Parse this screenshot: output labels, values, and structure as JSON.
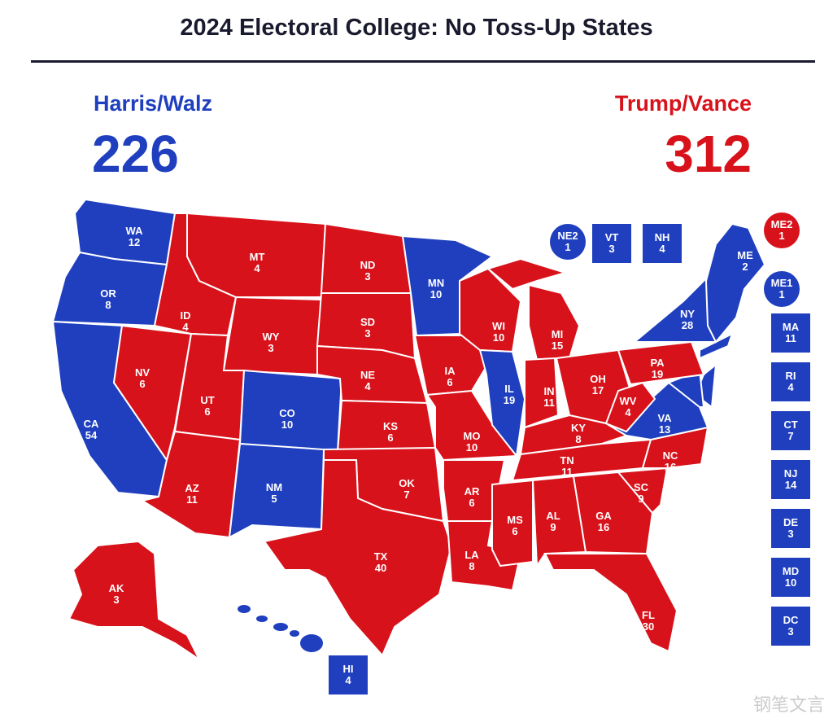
{
  "title": "2024 Electoral College: No Toss-Up States",
  "democrat": {
    "name": "Harris/Walz",
    "votes": "226",
    "color": "#1f3fbf"
  },
  "republican": {
    "name": "Trump/Vance",
    "votes": "312",
    "color": "#d8121b"
  },
  "states": [
    {
      "abbr": "WA",
      "votes": "12",
      "winner": "D"
    },
    {
      "abbr": "OR",
      "votes": "8",
      "winner": "D"
    },
    {
      "abbr": "CA",
      "votes": "54",
      "winner": "D"
    },
    {
      "abbr": "NV",
      "votes": "6",
      "winner": "R"
    },
    {
      "abbr": "ID",
      "votes": "4",
      "winner": "R"
    },
    {
      "abbr": "MT",
      "votes": "4",
      "winner": "R"
    },
    {
      "abbr": "WY",
      "votes": "3",
      "winner": "R"
    },
    {
      "abbr": "UT",
      "votes": "6",
      "winner": "R"
    },
    {
      "abbr": "AZ",
      "votes": "11",
      "winner": "R"
    },
    {
      "abbr": "CO",
      "votes": "10",
      "winner": "D"
    },
    {
      "abbr": "NM",
      "votes": "5",
      "winner": "D"
    },
    {
      "abbr": "ND",
      "votes": "3",
      "winner": "R"
    },
    {
      "abbr": "SD",
      "votes": "3",
      "winner": "R"
    },
    {
      "abbr": "NE",
      "votes": "4",
      "winner": "R"
    },
    {
      "abbr": "KS",
      "votes": "6",
      "winner": "R"
    },
    {
      "abbr": "OK",
      "votes": "7",
      "winner": "R"
    },
    {
      "abbr": "TX",
      "votes": "40",
      "winner": "R"
    },
    {
      "abbr": "MN",
      "votes": "10",
      "winner": "D"
    },
    {
      "abbr": "IA",
      "votes": "6",
      "winner": "R"
    },
    {
      "abbr": "MO",
      "votes": "10",
      "winner": "R"
    },
    {
      "abbr": "AR",
      "votes": "6",
      "winner": "R"
    },
    {
      "abbr": "LA",
      "votes": "8",
      "winner": "R"
    },
    {
      "abbr": "WI",
      "votes": "10",
      "winner": "R"
    },
    {
      "abbr": "IL",
      "votes": "19",
      "winner": "D"
    },
    {
      "abbr": "MI",
      "votes": "15",
      "winner": "R"
    },
    {
      "abbr": "IN",
      "votes": "11",
      "winner": "R"
    },
    {
      "abbr": "OH",
      "votes": "17",
      "winner": "R"
    },
    {
      "abbr": "KY",
      "votes": "8",
      "winner": "R"
    },
    {
      "abbr": "TN",
      "votes": "11",
      "winner": "R"
    },
    {
      "abbr": "MS",
      "votes": "6",
      "winner": "R"
    },
    {
      "abbr": "AL",
      "votes": "9",
      "winner": "R"
    },
    {
      "abbr": "GA",
      "votes": "16",
      "winner": "R"
    },
    {
      "abbr": "FL",
      "votes": "30",
      "winner": "R"
    },
    {
      "abbr": "SC",
      "votes": "9",
      "winner": "R"
    },
    {
      "abbr": "NC",
      "votes": "16",
      "winner": "R"
    },
    {
      "abbr": "VA",
      "votes": "13",
      "winner": "D"
    },
    {
      "abbr": "WV",
      "votes": "4",
      "winner": "R"
    },
    {
      "abbr": "PA",
      "votes": "19",
      "winner": "R"
    },
    {
      "abbr": "NY",
      "votes": "28",
      "winner": "D"
    },
    {
      "abbr": "ME",
      "votes": "2",
      "winner": "D"
    },
    {
      "abbr": "AK",
      "votes": "3",
      "winner": "R"
    }
  ],
  "boxes": [
    {
      "abbr": "VT",
      "votes": "3",
      "winner": "D"
    },
    {
      "abbr": "NH",
      "votes": "4",
      "winner": "D"
    },
    {
      "abbr": "MA",
      "votes": "11",
      "winner": "D"
    },
    {
      "abbr": "RI",
      "votes": "4",
      "winner": "D"
    },
    {
      "abbr": "CT",
      "votes": "7",
      "winner": "D"
    },
    {
      "abbr": "NJ",
      "votes": "14",
      "winner": "D"
    },
    {
      "abbr": "DE",
      "votes": "3",
      "winner": "D"
    },
    {
      "abbr": "MD",
      "votes": "10",
      "winner": "D"
    },
    {
      "abbr": "DC",
      "votes": "3",
      "winner": "D"
    },
    {
      "abbr": "HI",
      "votes": "4",
      "winner": "D"
    }
  ],
  "districts": [
    {
      "abbr": "NE2",
      "votes": "1",
      "winner": "D"
    },
    {
      "abbr": "ME2",
      "votes": "1",
      "winner": "R"
    },
    {
      "abbr": "ME1",
      "votes": "1",
      "winner": "D"
    }
  ],
  "watermark": "钢笔文言"
}
